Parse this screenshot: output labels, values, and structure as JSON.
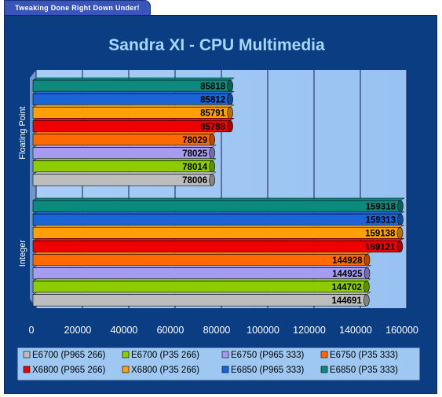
{
  "banner": {
    "text": "Tweaking Done Right Down Under!"
  },
  "chart_data": {
    "type": "bar",
    "orientation": "horizontal",
    "title": "Sandra XI - CPU Multimedia",
    "categories": [
      "Floating Point",
      "Integer"
    ],
    "xlim": [
      0,
      160000
    ],
    "xticks": [
      0,
      20000,
      40000,
      60000,
      80000,
      100000,
      120000,
      140000,
      160000
    ],
    "grid": true,
    "legend_position": "bottom",
    "series": [
      {
        "name": "E6700 (P965 266)",
        "color": "#bdbdbd",
        "values": [
          78006,
          144691
        ]
      },
      {
        "name": "E6700 (P35 266)",
        "color": "#8ccc00",
        "values": [
          78014,
          144702
        ]
      },
      {
        "name": "E6750 (P965 333)",
        "color": "#a59cf0",
        "values": [
          78025,
          144925
        ]
      },
      {
        "name": "E6750 (P35 333)",
        "color": "#ff6a00",
        "values": [
          78029,
          144928
        ]
      },
      {
        "name": "X6800 (P965 266)",
        "color": "#ee0000",
        "values": [
          85788,
          159121
        ]
      },
      {
        "name": "X6800 (P35 266)",
        "color": "#ffa000",
        "values": [
          85791,
          159138
        ]
      },
      {
        "name": "E6850 (P965 333)",
        "color": "#1a64d8",
        "values": [
          85812,
          159313
        ]
      },
      {
        "name": "E6850 (P35 333)",
        "color": "#0d8a7e",
        "values": [
          85818,
          159318
        ]
      }
    ]
  }
}
